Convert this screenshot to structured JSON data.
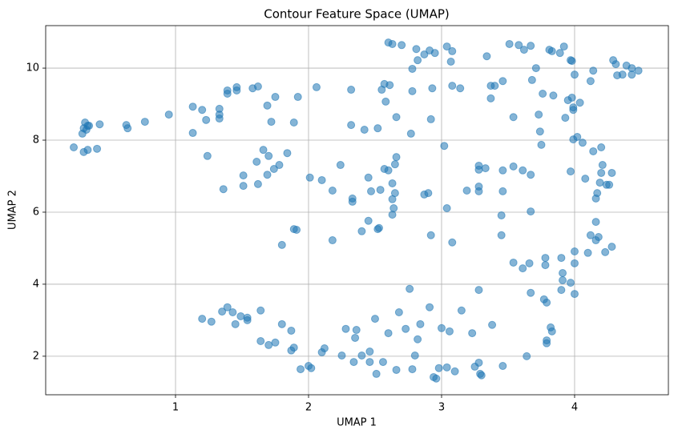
{
  "chart_data": {
    "type": "scatter",
    "title": "Contour Feature Space (UMAP)",
    "x_label": "UMAP 1",
    "y_label": "UMAP 2",
    "color": "#1f77b4",
    "alpha": 0.55,
    "grid": true,
    "xlim": [
      0.024,
      4.705
    ],
    "ylim": [
      0.93,
      11.18
    ],
    "xticks": [
      1,
      2,
      3,
      4
    ],
    "yticks": [
      2,
      4,
      6,
      8,
      10
    ],
    "x": [
      0.235,
      0.31,
      0.32,
      0.3,
      0.34,
      0.33,
      0.31,
      0.34,
      0.35,
      0.41,
      0.43,
      0.63,
      0.64,
      0.77,
      0.95,
      1.13,
      1.13,
      1.2,
      1.23,
      1.33,
      1.33,
      1.33,
      1.39,
      1.39,
      1.46,
      1.46,
      1.58,
      1.62,
      1.69,
      1.75,
      1.72,
      1.24,
      1.36,
      1.51,
      1.51,
      1.61,
      1.66,
      1.69,
      1.7,
      1.62,
      1.74,
      1.78,
      1.84,
      1.89,
      1.92,
      2.06,
      2.01,
      2.1,
      2.18,
      2.24,
      1.89,
      1.91,
      1.8,
      2.18,
      2.32,
      2.32,
      2.42,
      2.52,
      2.55,
      2.57,
      2.61,
      2.58,
      2.66,
      2.77,
      2.78,
      2.93,
      2.92,
      3.08,
      3.02,
      3.14,
      2.4,
      2.45,
      2.53,
      2.52,
      2.33,
      2.33,
      2.45,
      2.47,
      2.54,
      2.57,
      2.6,
      2.65,
      2.66,
      2.63,
      2.65,
      2.63,
      2.64,
      2.63,
      2.87,
      2.9,
      2.92,
      3.04,
      3.08,
      3.19,
      3.28,
      3.28,
      3.28,
      3.33,
      3.28,
      3.46,
      3.54,
      3.61,
      3.67,
      3.46,
      3.45,
      3.67,
      3.45,
      3.54,
      3.61,
      3.66,
      3.78,
      3.78,
      3.9,
      3.91,
      3.91,
      4.0,
      4.0,
      4.1,
      4.12,
      4.16,
      4.16,
      4.18,
      4.23,
      4.28,
      4.16,
      4.17,
      4.19,
      4.2,
      4.24,
      4.26,
      4.21,
      4.28,
      4.08,
      3.97,
      4.14,
      4.2,
      3.99,
      4.02,
      4.06,
      3.75,
      3.74,
      3.73,
      3.54,
      3.93,
      3.99,
      4.04,
      3.99,
      3.95,
      3.98,
      3.76,
      3.84,
      3.68,
      3.71,
      4.12,
      4.14,
      4.0,
      3.37,
      3.4,
      3.46,
      3.37,
      3.34,
      3.07,
      3.04,
      3.08,
      2.6,
      2.63,
      2.7,
      2.81,
      2.87,
      2.91,
      2.95,
      2.82,
      2.78,
      3.51,
      3.58,
      3.62,
      3.67,
      3.81,
      3.83,
      3.89,
      3.92,
      3.97,
      3.98,
      4.29,
      4.31,
      4.32,
      4.36,
      4.39,
      4.43,
      4.43,
      4.48,
      1.2,
      1.27,
      1.35,
      1.39,
      1.43,
      1.45,
      1.49,
      1.54,
      1.54,
      1.64,
      1.64,
      1.7,
      1.75,
      1.8,
      1.87,
      1.87,
      1.89,
      1.94,
      2.0,
      2.02,
      2.1,
      2.12,
      2.25,
      2.28,
      2.35,
      2.36,
      2.34,
      2.4,
      2.46,
      2.46,
      2.5,
      2.51,
      2.56,
      2.6,
      2.66,
      2.68,
      2.73,
      2.76,
      2.78,
      2.8,
      2.82,
      2.84,
      2.91,
      2.94,
      2.96,
      2.98,
      3.0,
      3.04,
      3.06,
      3.1,
      3.15,
      3.23,
      3.25,
      3.28,
      3.29,
      3.3,
      3.28,
      3.38,
      3.46,
      3.64,
      3.67,
      3.77,
      3.79,
      3.79,
      3.79,
      3.82,
      3.83,
      3.9,
      3.97,
      4.0
    ],
    "values": [
      7.8,
      8.33,
      8.49,
      8.18,
      8.4,
      8.29,
      7.67,
      7.73,
      8.4,
      7.76,
      8.44,
      8.42,
      8.33,
      8.51,
      8.71,
      8.2,
      8.93,
      8.84,
      8.56,
      8.87,
      8.6,
      8.71,
      9.38,
      9.29,
      9.38,
      9.47,
      9.44,
      9.49,
      8.96,
      9.2,
      8.51,
      7.56,
      6.64,
      7.02,
      6.73,
      7.4,
      7.73,
      7.04,
      7.56,
      6.78,
      7.2,
      7.31,
      7.64,
      8.49,
      9.2,
      9.47,
      6.96,
      6.89,
      6.6,
      7.31,
      5.53,
      5.51,
      5.09,
      5.22,
      9.4,
      8.42,
      8.29,
      8.33,
      9.4,
      9.56,
      9.53,
      9.07,
      8.64,
      8.18,
      9.36,
      9.44,
      8.58,
      9.51,
      7.84,
      9.44,
      5.47,
      5.76,
      5.56,
      5.53,
      6.38,
      6.29,
      6.96,
      6.58,
      6.62,
      7.2,
      7.16,
      7.33,
      7.53,
      6.8,
      6.53,
      6.36,
      6.11,
      5.93,
      6.49,
      6.53,
      5.36,
      6.11,
      5.16,
      6.6,
      6.71,
      7.29,
      7.18,
      7.22,
      6.58,
      7.16,
      7.27,
      7.16,
      7.04,
      6.58,
      5.91,
      6.02,
      5.36,
      4.6,
      4.44,
      4.58,
      4.53,
      4.73,
      4.73,
      4.31,
      4.11,
      4.91,
      4.58,
      4.87,
      5.36,
      5.22,
      5.73,
      5.31,
      4.89,
      5.04,
      6.38,
      6.53,
      6.82,
      7.09,
      6.76,
      6.76,
      7.31,
      7.09,
      6.93,
      7.13,
      7.69,
      7.8,
      8.02,
      8.09,
      7.93,
      7.87,
      8.24,
      8.71,
      8.64,
      8.62,
      8.84,
      9.04,
      8.91,
      9.11,
      9.18,
      9.29,
      9.24,
      9.67,
      10.0,
      9.64,
      9.93,
      9.82,
      9.51,
      9.51,
      9.64,
      9.16,
      10.33,
      10.18,
      10.6,
      10.47,
      10.71,
      10.67,
      10.64,
      10.53,
      10.38,
      10.49,
      10.42,
      10.22,
      9.98,
      10.67,
      10.64,
      10.51,
      10.62,
      10.51,
      10.47,
      10.42,
      10.6,
      10.22,
      10.2,
      10.22,
      10.11,
      9.8,
      9.82,
      10.07,
      10.0,
      9.82,
      9.93,
      3.04,
      2.96,
      3.24,
      3.36,
      3.22,
      2.89,
      3.11,
      3.07,
      3.0,
      3.27,
      2.42,
      2.31,
      2.38,
      2.89,
      2.71,
      2.16,
      2.24,
      1.64,
      1.73,
      1.67,
      2.11,
      2.22,
      2.02,
      2.76,
      2.51,
      2.73,
      1.84,
      2.02,
      2.13,
      1.84,
      3.04,
      1.51,
      1.84,
      2.64,
      1.62,
      3.22,
      2.76,
      3.87,
      1.64,
      2.02,
      2.47,
      2.89,
      3.36,
      1.42,
      1.38,
      1.67,
      2.78,
      1.69,
      2.69,
      1.58,
      3.27,
      2.64,
      1.71,
      1.82,
      1.51,
      1.47,
      3.84,
      2.87,
      1.73,
      2.0,
      3.76,
      3.58,
      3.49,
      2.44,
      2.36,
      2.8,
      2.69,
      3.84,
      4.04,
      3.73
    ]
  }
}
